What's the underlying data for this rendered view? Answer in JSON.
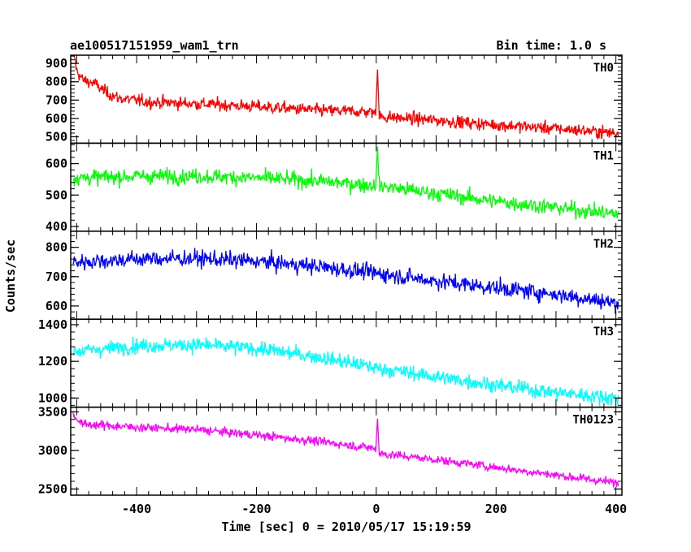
{
  "header": {
    "title": "ae100517151959_wam1_trn",
    "bin_time": "Bin time: 1.0 s"
  },
  "chart_data": {
    "type": "line",
    "title": "ae100517151959_wam1_trn",
    "xlabel": "Time [sec] 0 = 2010/05/17 15:19:59",
    "ylabel": "Counts/sec",
    "xlim": [
      -510,
      410
    ],
    "xticks": [
      -400,
      -200,
      0,
      200,
      400
    ],
    "grid": false,
    "panels": [
      {
        "name": "TH0",
        "color": "#ff0000",
        "ylim": [
          465,
          945
        ],
        "yticks": [
          500,
          600,
          700,
          800,
          900
        ],
        "anchors": [
          [
            -505,
            960
          ],
          [
            -500,
            860
          ],
          [
            -490,
            810
          ],
          [
            -470,
            790
          ],
          [
            -450,
            740
          ],
          [
            -430,
            710
          ],
          [
            -380,
            690
          ],
          [
            -300,
            680
          ],
          [
            -200,
            665
          ],
          [
            -100,
            645
          ],
          [
            -5,
            635
          ],
          [
            5,
            610
          ],
          [
            100,
            590
          ],
          [
            200,
            565
          ],
          [
            300,
            545
          ],
          [
            400,
            520
          ]
        ],
        "noise": 34,
        "spike": {
          "x": 2,
          "peak": 870,
          "width": 3
        }
      },
      {
        "name": "TH1",
        "color": "#00ff00",
        "ylim": [
          385,
          665
        ],
        "yticks": [
          400,
          500,
          600
        ],
        "anchors": [
          [
            -500,
            555
          ],
          [
            -400,
            560
          ],
          [
            -300,
            560
          ],
          [
            -200,
            555
          ],
          [
            -100,
            545
          ],
          [
            0,
            530
          ],
          [
            100,
            505
          ],
          [
            200,
            480
          ],
          [
            300,
            460
          ],
          [
            400,
            440
          ]
        ],
        "noise": 24,
        "spike": {
          "x": 2,
          "peak": 650,
          "width": 2
        }
      },
      {
        "name": "TH2",
        "color": "#0000ff",
        "ylim": [
          555,
          855
        ],
        "yticks": [
          600,
          700,
          800
        ],
        "anchors": [
          [
            -500,
            750
          ],
          [
            -400,
            760
          ],
          [
            -300,
            762
          ],
          [
            -200,
            752
          ],
          [
            -100,
            735
          ],
          [
            0,
            712
          ],
          [
            100,
            685
          ],
          [
            200,
            662
          ],
          [
            300,
            640
          ],
          [
            400,
            610
          ]
        ],
        "noise": 28,
        "spike": null
      },
      {
        "name": "TH3",
        "color": "#00ffff",
        "ylim": [
          950,
          1430
        ],
        "yticks": [
          1000,
          1200,
          1400
        ],
        "anchors": [
          [
            -500,
            1255
          ],
          [
            -400,
            1285
          ],
          [
            -300,
            1290
          ],
          [
            -200,
            1270
          ],
          [
            -100,
            1225
          ],
          [
            0,
            1165
          ],
          [
            100,
            1115
          ],
          [
            200,
            1070
          ],
          [
            300,
            1030
          ],
          [
            400,
            1000
          ]
        ],
        "noise": 40,
        "spike": null
      },
      {
        "name": "TH0123",
        "color": "#ff00ff",
        "ylim": [
          2420,
          3560
        ],
        "yticks": [
          2500,
          3000,
          3500
        ],
        "anchors": [
          [
            -505,
            3450
          ],
          [
            -490,
            3340
          ],
          [
            -400,
            3300
          ],
          [
            -300,
            3270
          ],
          [
            -200,
            3200
          ],
          [
            -100,
            3120
          ],
          [
            -5,
            3030
          ],
          [
            5,
            2960
          ],
          [
            100,
            2880
          ],
          [
            200,
            2780
          ],
          [
            300,
            2680
          ],
          [
            400,
            2580
          ]
        ],
        "noise": 55,
        "spike": {
          "x": 2,
          "peak": 3420,
          "width": 3
        }
      }
    ]
  }
}
